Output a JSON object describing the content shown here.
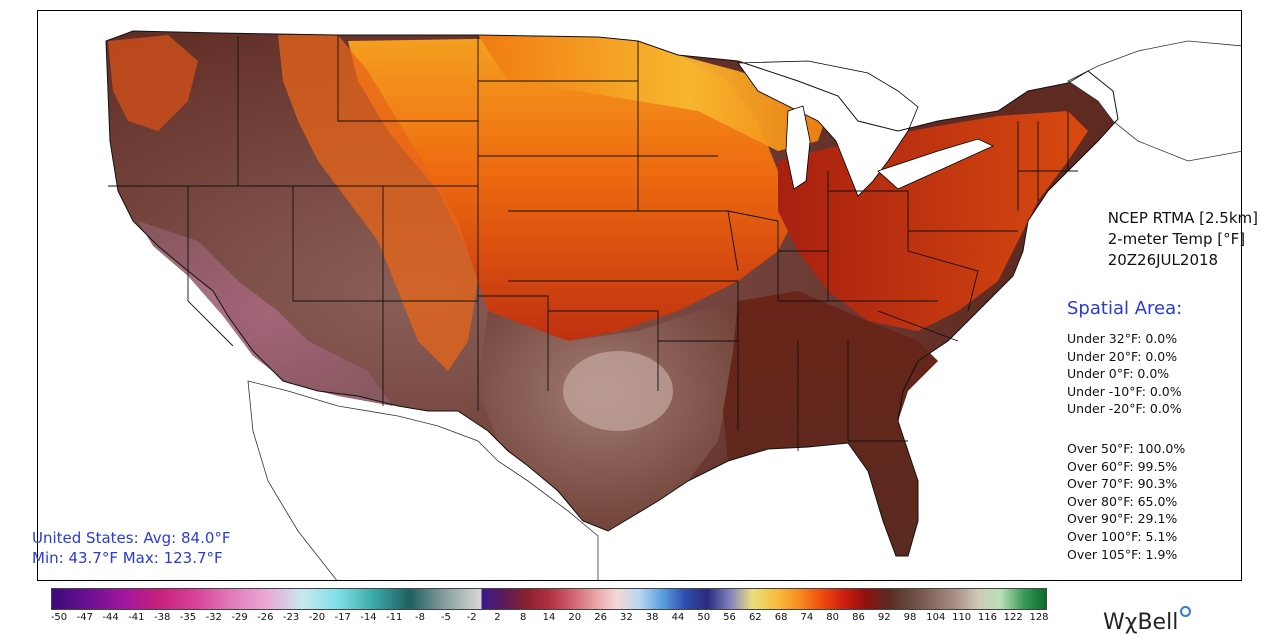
{
  "product": {
    "source": "NCEP RTMA [2.5km]",
    "variable": "2-meter Temp [°F]",
    "valid_time": "20Z26JUL2018"
  },
  "spatial_area": {
    "title": "Spatial Area:",
    "under": [
      "Under 32°F: 0.0%",
      "Under 20°F: 0.0%",
      "Under 0°F: 0.0%",
      "Under -10°F: 0.0%",
      "Under -20°F: 0.0%"
    ],
    "over": [
      "Over 50°F: 100.0%",
      "Over 60°F: 99.5%",
      "Over 70°F: 90.3%",
      "Over 80°F: 65.0%",
      "Over 90°F: 29.1%",
      "Over 100°F: 5.1%",
      "Over 105°F: 1.9%"
    ]
  },
  "us_stats": {
    "line1": "United States: Avg:  84.0°F",
    "line2": "Min:  43.7°F Max: 123.7°F"
  },
  "colorbar": {
    "ticks": [
      "-50",
      "-47",
      "-44",
      "-41",
      "-38",
      "-35",
      "-32",
      "-29",
      "-26",
      "-23",
      "-20",
      "-17",
      "-14",
      "-11",
      "-8",
      "-5",
      "-2",
      "2",
      "8",
      "14",
      "20",
      "26",
      "32",
      "38",
      "44",
      "50",
      "56",
      "62",
      "68",
      "74",
      "80",
      "86",
      "92",
      "98",
      "104",
      "110",
      "116",
      "122",
      "128"
    ],
    "colors": {
      "cold": [
        "#3b0a7a",
        "#6a1090",
        "#a0169e",
        "#c8207a",
        "#d8429a",
        "#e07ab8",
        "#eaa8d4",
        "#c8e8f0",
        "#7fe0e8",
        "#3aa8a8",
        "#1f6060",
        "#8aa0a0",
        "#d8d8d8"
      ],
      "warm": [
        "#3a1a8a",
        "#5a1a5a",
        "#8a2030",
        "#b03040",
        "#d06070",
        "#e8a0a0",
        "#f4d8d8",
        "#b8d8f0",
        "#5aa0e0",
        "#3050b0",
        "#2a2a80",
        "#8080c0",
        "#e8e080",
        "#f8c040",
        "#f89020",
        "#f05010",
        "#d02010",
        "#901010",
        "#5a2a20",
        "#6a4a40",
        "#8a6a60",
        "#a89088",
        "#d0c8b8",
        "#b8e0b8",
        "#3a9a5a",
        "#0a6a2a"
      ]
    }
  },
  "logo": {
    "text": "WχBell"
  }
}
